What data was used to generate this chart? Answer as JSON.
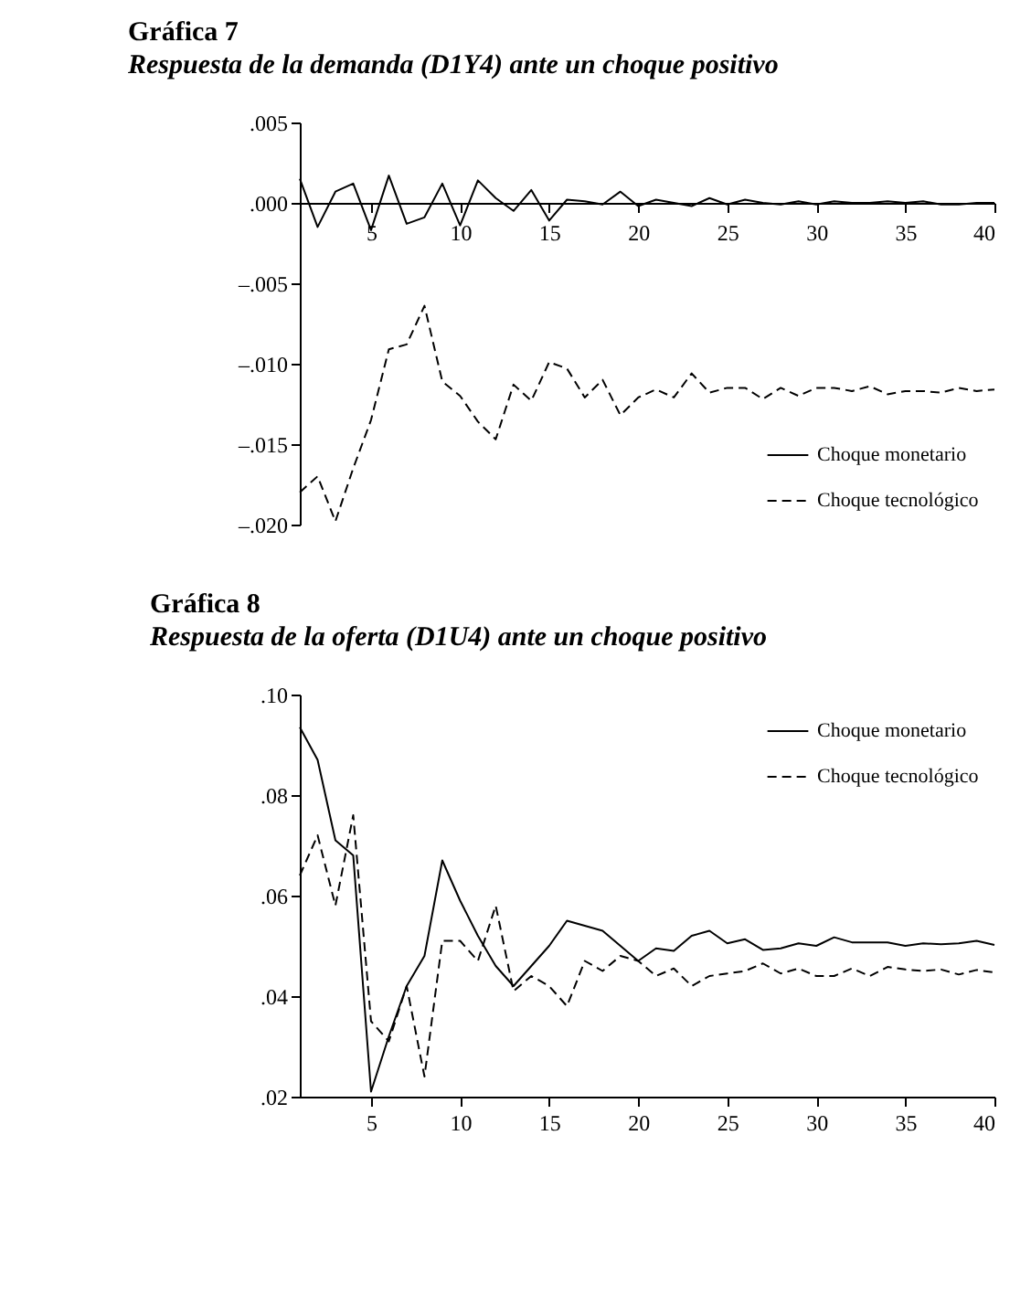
{
  "chart_data": [
    {
      "type": "line",
      "title": "Gráfica 7",
      "subtitle": "Respuesta de la demanda (D1Y4) ante un choque positivo",
      "x": [
        1,
        2,
        3,
        4,
        5,
        6,
        7,
        8,
        9,
        10,
        11,
        12,
        13,
        14,
        15,
        16,
        17,
        18,
        19,
        20,
        21,
        22,
        23,
        24,
        25,
        26,
        27,
        28,
        29,
        30,
        31,
        32,
        33,
        34,
        35,
        36,
        37,
        38,
        39,
        40
      ],
      "xlim": [
        1,
        40
      ],
      "xticks": [
        5,
        10,
        15,
        20,
        25,
        30,
        35,
        40
      ],
      "ylim": [
        -0.02,
        0.005
      ],
      "yticks": [
        {
          "value": 0.005,
          "label": ".005"
        },
        {
          "value": 0,
          "label": ".000"
        },
        {
          "value": -0.005,
          "label": "–.005"
        },
        {
          "value": -0.01,
          "label": "–.010"
        },
        {
          "value": -0.015,
          "label": "–.015"
        },
        {
          "value": -0.02,
          "label": "–.020"
        }
      ],
      "legend": "bottom right",
      "grid": false,
      "series": [
        {
          "name": "Choque monetario",
          "color": "#000000",
          "line_style": "solid",
          "values": [
            0.0015,
            -0.0015,
            0.0007,
            0.0012,
            -0.0017,
            0.0017,
            -0.0013,
            -0.0009,
            0.0012,
            -0.0014,
            0.0014,
            0.0003,
            -0.0005,
            0.0008,
            -0.0011,
            0.0002,
            0.0001,
            -0.0001,
            0.0007,
            -0.0002,
            0.0002,
            0.0,
            -0.0002,
            0.0003,
            -0.0001,
            0.0002,
            0.0,
            -0.0001,
            0.0001,
            -0.0001,
            0.0001,
            0.0,
            0.0,
            0.0001,
            0.0,
            0.0001,
            -0.0001,
            -0.0001,
            0.0,
            0.0
          ]
        },
        {
          "name": "Choque tecnológico",
          "color": "#000000",
          "line_style": "dashed",
          "values": [
            -0.018,
            -0.017,
            -0.0198,
            -0.0165,
            -0.0135,
            -0.0091,
            -0.0088,
            -0.0064,
            -0.0111,
            -0.012,
            -0.0136,
            -0.0147,
            -0.0113,
            -0.0123,
            -0.0099,
            -0.0103,
            -0.0121,
            -0.011,
            -0.0132,
            -0.0121,
            -0.0116,
            -0.0121,
            -0.0106,
            -0.0118,
            -0.0115,
            -0.0115,
            -0.0122,
            -0.0115,
            -0.012,
            -0.0115,
            -0.0115,
            -0.0117,
            -0.0114,
            -0.0119,
            -0.0117,
            -0.0117,
            -0.0118,
            -0.0115,
            -0.0117,
            -0.0116
          ]
        }
      ]
    },
    {
      "type": "line",
      "title": "Gráfica 8",
      "subtitle": "Respuesta de la oferta (D1U4) ante un choque positivo",
      "x": [
        1,
        2,
        3,
        4,
        5,
        6,
        7,
        8,
        9,
        10,
        11,
        12,
        13,
        14,
        15,
        16,
        17,
        18,
        19,
        20,
        21,
        22,
        23,
        24,
        25,
        26,
        27,
        28,
        29,
        30,
        31,
        32,
        33,
        34,
        35,
        36,
        37,
        38,
        39,
        40
      ],
      "xlim": [
        1,
        40
      ],
      "xticks": [
        5,
        10,
        15,
        20,
        25,
        30,
        35,
        40
      ],
      "ylim": [
        0.02,
        0.1
      ],
      "yticks": [
        {
          "value": 0.02,
          "label": ".02"
        },
        {
          "value": 0.04,
          "label": ".04"
        },
        {
          "value": 0.06,
          "label": ".06"
        },
        {
          "value": 0.08,
          "label": ".08"
        },
        {
          "value": 0.1,
          "label": ".10"
        }
      ],
      "legend": "top right",
      "grid": false,
      "series": [
        {
          "name": "Choque monetario",
          "color": "#000000",
          "line_style": "solid",
          "values": [
            0.0935,
            0.087,
            0.071,
            0.068,
            0.021,
            0.032,
            0.042,
            0.048,
            0.067,
            0.059,
            0.052,
            0.046,
            0.042,
            0.046,
            0.05,
            0.055,
            0.054,
            0.053,
            0.05,
            0.047,
            0.0495,
            0.049,
            0.052,
            0.053,
            0.0505,
            0.0513,
            0.0492,
            0.0495,
            0.0505,
            0.05,
            0.0517,
            0.0507,
            0.0507,
            0.0507,
            0.05,
            0.0505,
            0.0503,
            0.0505,
            0.051,
            0.0502
          ]
        },
        {
          "name": "Choque tecnológico",
          "color": "#000000",
          "line_style": "dashed",
          "values": [
            0.064,
            0.072,
            0.058,
            0.076,
            0.035,
            0.031,
            0.042,
            0.024,
            0.051,
            0.051,
            0.047,
            0.058,
            0.041,
            0.044,
            0.042,
            0.038,
            0.047,
            0.045,
            0.048,
            0.047,
            0.044,
            0.0455,
            0.042,
            0.044,
            0.0445,
            0.045,
            0.0465,
            0.0445,
            0.0455,
            0.044,
            0.044,
            0.0455,
            0.044,
            0.0458,
            0.0453,
            0.045,
            0.0453,
            0.0443,
            0.0452,
            0.0447
          ]
        }
      ]
    }
  ]
}
